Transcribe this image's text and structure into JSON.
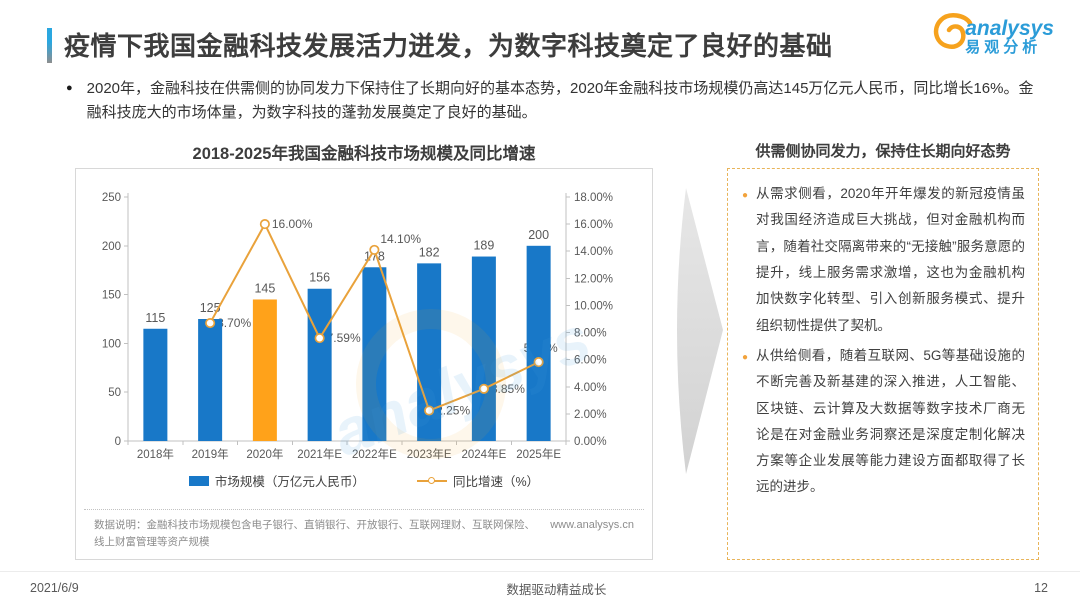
{
  "header": {
    "title": "疫情下我国金融科技发展活力迸发，为数字科技奠定了良好的基础",
    "logo": {
      "brand_en": "analysys",
      "brand_cn": "易观分析"
    }
  },
  "summary": {
    "bullet": "2020年，金融科技在供需侧的协同发力下保持住了长期向好的基本态势，2020年金融科技市场规模仍高达145万亿元人民币，同比增长16%。金融科技庞大的市场体量，为数字科技的蓬勃发展奠定了良好的基础。"
  },
  "chart_data": {
    "type": "bar+line",
    "title": "2018-2025年我国金融科技市场规模及同比增速",
    "categories": [
      "2018年",
      "2019年",
      "2020年",
      "2021年E",
      "2022年E",
      "2023年E",
      "2024年E",
      "2025年E"
    ],
    "series": [
      {
        "name": "市场规模（万亿元人民币）",
        "type": "bar",
        "values": [
          115,
          125,
          145,
          156,
          178,
          182,
          189,
          200
        ],
        "highlight_index": 2
      },
      {
        "name": "同比增速（%）",
        "type": "line",
        "values": [
          null,
          8.7,
          16.0,
          7.59,
          14.1,
          2.25,
          3.85,
          5.82
        ],
        "labels": [
          null,
          "8.70%",
          "16.00%",
          "7.59%",
          "14.10%",
          "2.25%",
          "3.85%",
          "5.82%"
        ]
      }
    ],
    "left_axis": {
      "min": 0,
      "max": 250,
      "step": 50
    },
    "right_axis": {
      "min": 0,
      "max": 18,
      "step": 2,
      "suffix": "%"
    },
    "legend_position": "bottom",
    "grid": false,
    "colors": {
      "bar": "#1878c8",
      "bar_highlight": "#ffa21a",
      "line": "#e9a23b",
      "axis": "#c0c0c0",
      "tick_text": "#595959"
    }
  },
  "chart_note": {
    "text": "数据说明：金融科技市场规模包含电子银行、直销银行、开放银行、互联网理财、互联网保险、线上财富管理等资产规模",
    "source_url": "www.analysys.cn"
  },
  "right_panel": {
    "title": "供需侧协同发力，保持住长期向好态势",
    "bullets": [
      "从需求侧看，2020年开年爆发的新冠疫情虽对我国经济造成巨大挑战，但对金融机构而言，随着社交隔离带来的“无接触”服务意愿的提升，线上服务需求激增，这也为金融机构加快数字化转型、引入创新服务模式、提升组织韧性提供了契机。",
      "从供给侧看，随着互联网、5G等基础设施的不断完善及新基建的深入推进，人工智能、区块链、云计算及大数据等数字技术厂商无论是在对金融业务洞察还是深度定制化解决方案等企业发展等能力建设方面都取得了长远的进步。"
    ]
  },
  "footer": {
    "date": "2021/6/9",
    "slogan": "数据驱动精益成长",
    "page": "12"
  }
}
